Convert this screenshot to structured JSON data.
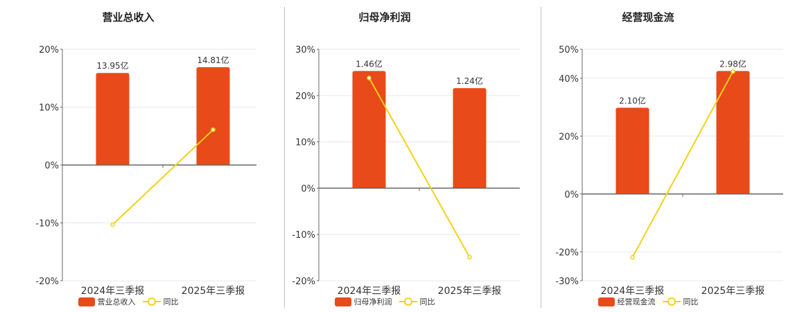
{
  "colors": {
    "bar": "#e84a1a",
    "line": "#f2d216",
    "grid": "#e6e8f0",
    "axis": "#666666",
    "divider": "#bdbdbd"
  },
  "chart_data": [
    {
      "type": "bar",
      "title": "营业总收入",
      "categories": [
        "2024年三季报",
        "2025年三季报"
      ],
      "series": [
        {
          "name": "营业总收入",
          "type": "bar",
          "axis": "pct",
          "values": [
            15.9,
            16.9
          ],
          "labels": [
            "13.95亿",
            "14.81亿"
          ]
        },
        {
          "name": "同比",
          "type": "line",
          "axis": "pct",
          "values": [
            -10.3,
            6.1
          ]
        }
      ],
      "yticks": [
        20,
        10,
        0,
        -10,
        -20
      ],
      "ytick_labels": [
        "20%",
        "10%",
        "0%",
        "-10%",
        "-20%"
      ],
      "ylim": [
        -20,
        20
      ],
      "grid": true,
      "legend": "bottom"
    },
    {
      "type": "bar",
      "title": "归母净利润",
      "categories": [
        "2024年三季报",
        "2025年三季报"
      ],
      "series": [
        {
          "name": "归母净利润",
          "type": "bar",
          "axis": "pct",
          "values": [
            25.3,
            21.6
          ],
          "labels": [
            "1.46亿",
            "1.24亿"
          ]
        },
        {
          "name": "同比",
          "type": "line",
          "axis": "pct",
          "values": [
            23.8,
            -14.9
          ]
        }
      ],
      "yticks": [
        30,
        20,
        10,
        0,
        -10,
        -20
      ],
      "ytick_labels": [
        "30%",
        "20%",
        "10%",
        "0%",
        "-10%",
        "-20%"
      ],
      "ylim": [
        -20,
        30
      ],
      "grid": true,
      "legend": "bottom"
    },
    {
      "type": "bar",
      "title": "经营现金流",
      "categories": [
        "2024年三季报",
        "2025年三季报"
      ],
      "series": [
        {
          "name": "经营现金流",
          "type": "bar",
          "axis": "pct",
          "values": [
            29.8,
            42.5
          ],
          "labels": [
            "2.10亿",
            "2.98亿"
          ]
        },
        {
          "name": "同比",
          "type": "line",
          "axis": "pct",
          "values": [
            -21.9,
            42.3
          ]
        }
      ],
      "yticks": [
        50,
        40,
        20,
        0,
        -20,
        -30
      ],
      "ytick_labels": [
        "50%",
        "40%",
        "20%",
        "0%",
        "-20%",
        "-30%"
      ],
      "ylim": [
        -30,
        50
      ],
      "grid": true,
      "legend": "bottom"
    }
  ]
}
